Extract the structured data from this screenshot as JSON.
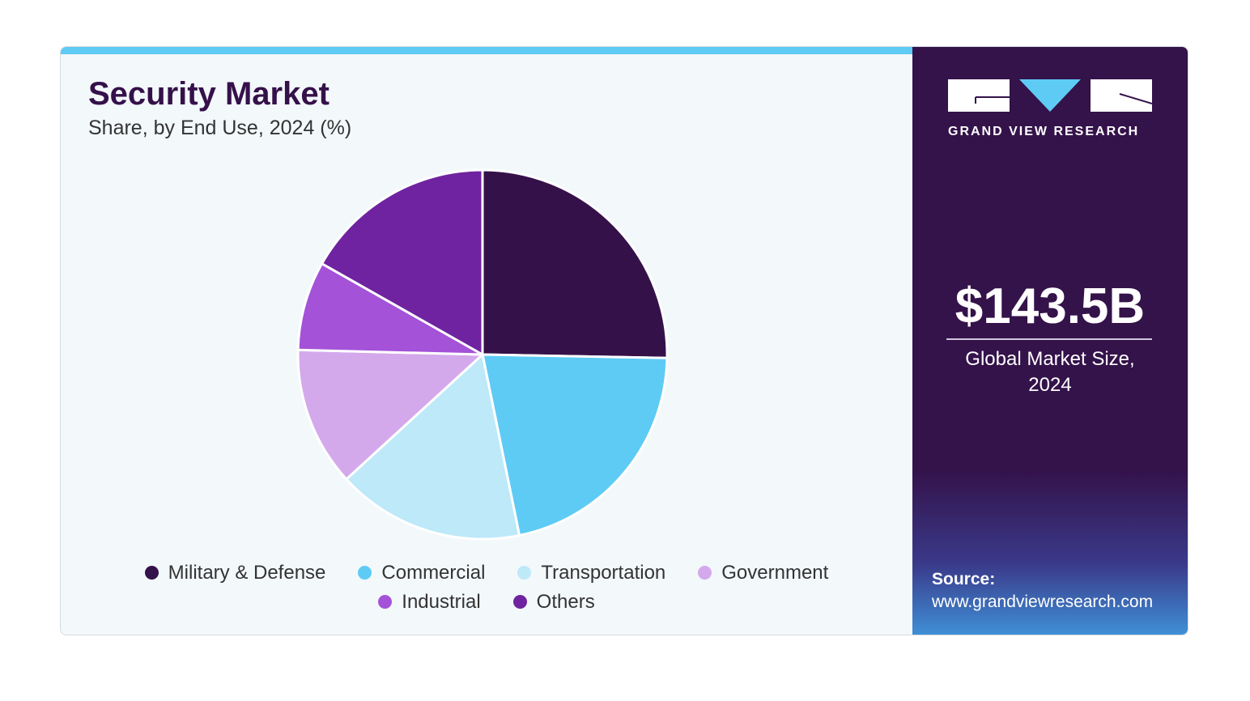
{
  "header": {
    "title": "Security Market",
    "subtitle": "Share, by End Use, 2024 (%)"
  },
  "sidebar": {
    "logo_text": "GRAND VIEW RESEARCH",
    "market_size": "$143.5B",
    "caption_line1": "Global Market Size,",
    "caption_line2": "2024",
    "source_label": "Source:",
    "source_url": "www.grandviewresearch.com"
  },
  "chart_data": {
    "type": "pie",
    "title": "Security Market",
    "subtitle": "Share, by End Use, 2024 (%)",
    "legend_position": "bottom",
    "start_angle": "12 o'clock, clockwise",
    "categories": [
      "Military & Defense",
      "Commercial",
      "Transportation",
      "Government",
      "Industrial",
      "Others"
    ],
    "values": [
      25.3,
      21.5,
      16.4,
      12.2,
      7.8,
      16.8
    ],
    "colors": [
      "#35114a",
      "#5ecbf5",
      "#bde9f9",
      "#d4a9ec",
      "#a452d8",
      "#6f23a0"
    ]
  }
}
